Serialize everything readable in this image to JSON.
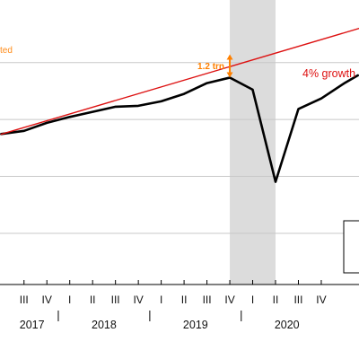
{
  "chart_data": {
    "type": "line",
    "corner_note": "ted",
    "x_quarters": [
      "III",
      "IV",
      "I",
      "II",
      "III",
      "IV",
      "I",
      "II",
      "III",
      "IV",
      "I",
      "II",
      "III",
      "IV"
    ],
    "x_years": [
      {
        "label": "2017",
        "quarter_index": 0.35
      },
      {
        "label": "2018",
        "quarter_index": 3.5
      },
      {
        "label": "2019",
        "quarter_index": 7.5
      },
      {
        "label": "2020",
        "quarter_index": 11.5
      }
    ],
    "x_range": [
      -1.05,
      14.65
    ],
    "y_range": [
      0,
      100
    ],
    "gridlines_y": [
      18,
      38,
      58,
      78
    ],
    "shaded_recession": {
      "from": 9.0,
      "to": 11.0,
      "color": "#dcdcdc"
    },
    "series": [
      {
        "name": "",
        "color": "#000000",
        "x": [
          -1.0,
          0.0,
          1.0,
          2.0,
          3.0,
          4.0,
          5.0,
          6.0,
          7.0,
          8.0,
          9.0,
          10.0,
          11.0,
          12.0,
          13.0,
          14.0,
          14.6
        ],
        "values": [
          52.9,
          54.0,
          56.8,
          58.9,
          60.7,
          62.5,
          62.8,
          64.4,
          67.0,
          70.8,
          72.7,
          68.5,
          36.1,
          61.7,
          65.4,
          70.7,
          73.5
        ]
      },
      {
        "name": "4% growth",
        "color": "#dd1111",
        "x": [
          -1.0,
          14.65
        ],
        "values": [
          52.8,
          90.0
        ]
      }
    ],
    "annotations": [
      {
        "type": "double-arrow",
        "label": "1.2 trn",
        "at_x": 9.0,
        "from_y": 72.7,
        "to_y": 80.9,
        "color": "#ff8000"
      }
    ]
  }
}
